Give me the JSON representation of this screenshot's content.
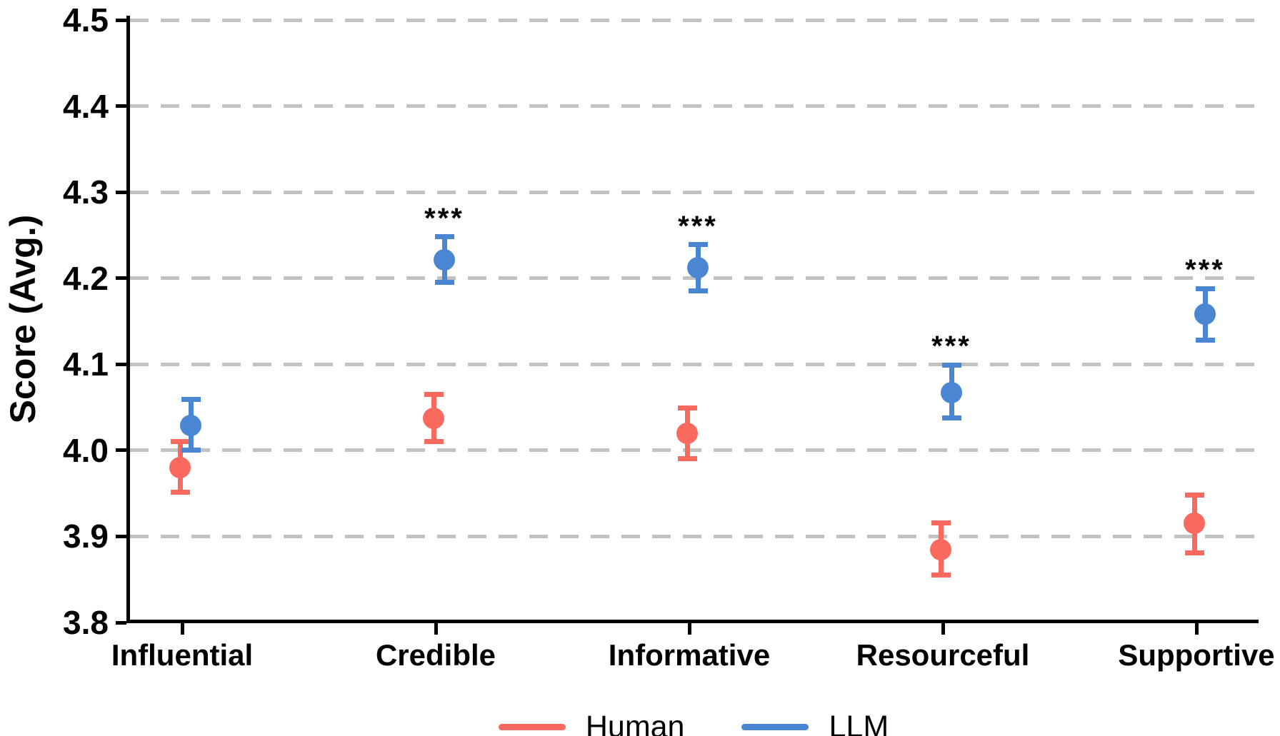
{
  "chart_data": {
    "type": "scatter",
    "title": "",
    "xlabel": "",
    "ylabel": "Score (Avg.)",
    "ylim": [
      3.8,
      4.5
    ],
    "yticks": [
      3.8,
      3.9,
      4.0,
      4.1,
      4.2,
      4.3,
      4.4,
      4.5
    ],
    "ytick_labels": [
      "3.8",
      "3.9",
      "4.0",
      "4.1",
      "4.2",
      "4.3",
      "4.4",
      "4.5"
    ],
    "categories": [
      "Influential",
      "Credible",
      "Informative",
      "Resourceful",
      "Supportive"
    ],
    "grid": "horizontal dashed",
    "grid_color": "#C2C2C2",
    "axis_color": "#000000",
    "legend_position": "bottom center",
    "series": [
      {
        "name": "Human",
        "color": "#F9695D",
        "values": [
          3.98,
          4.037,
          4.02,
          3.885,
          3.915
        ],
        "err_low": [
          3.951,
          4.01,
          3.99,
          3.855,
          3.881
        ],
        "err_high": [
          4.01,
          4.065,
          4.049,
          3.916,
          3.948
        ]
      },
      {
        "name": "LLM",
        "color": "#4A86D1",
        "values": [
          4.029,
          4.221,
          4.212,
          4.067,
          4.158
        ],
        "err_low": [
          4.0,
          4.195,
          4.185,
          4.038,
          4.128
        ],
        "err_high": [
          4.059,
          4.248,
          4.239,
          4.099,
          4.188
        ]
      }
    ],
    "significance": {
      "marker_color": "#000000",
      "attached_to_series": "LLM",
      "labels": [
        "",
        "***",
        "***",
        "***",
        "***"
      ]
    }
  }
}
